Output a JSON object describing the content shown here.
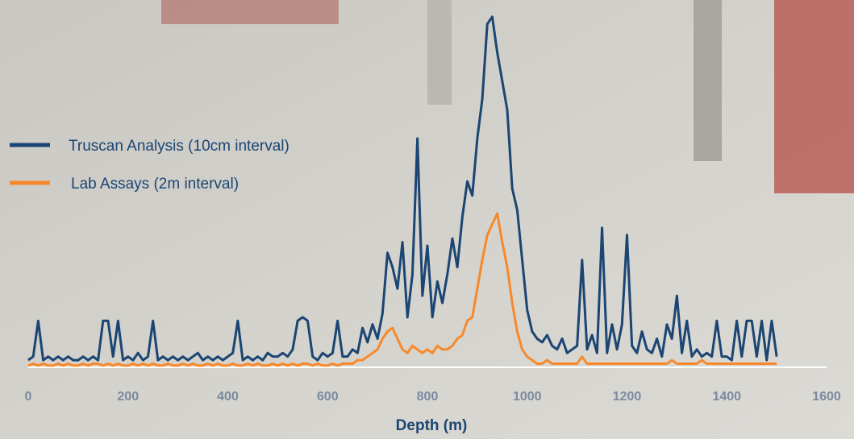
{
  "chart_data": {
    "type": "line",
    "x_label": "Depth (m)",
    "x": [
      0,
      10,
      20,
      30,
      40,
      50,
      60,
      70,
      80,
      90,
      100,
      110,
      120,
      130,
      140,
      150,
      160,
      170,
      180,
      190,
      200,
      210,
      220,
      230,
      240,
      250,
      260,
      270,
      280,
      290,
      300,
      310,
      320,
      330,
      340,
      350,
      360,
      370,
      380,
      390,
      400,
      410,
      420,
      430,
      440,
      450,
      460,
      470,
      480,
      490,
      500,
      510,
      520,
      530,
      540,
      550,
      560,
      570,
      580,
      590,
      600,
      610,
      620,
      630,
      640,
      650,
      660,
      670,
      680,
      690,
      700,
      710,
      720,
      730,
      740,
      750,
      760,
      770,
      780,
      790,
      800,
      810,
      820,
      830,
      840,
      850,
      860,
      870,
      880,
      890,
      900,
      910,
      920,
      930,
      940,
      950,
      960,
      970,
      980,
      990,
      1000,
      1010,
      1020,
      1030,
      1040,
      1050,
      1060,
      1070,
      1080,
      1090,
      1100,
      1110,
      1120,
      1130,
      1140,
      1150,
      1160,
      1170,
      1180,
      1190,
      1200,
      1210,
      1220,
      1230,
      1240,
      1250,
      1260,
      1270,
      1280,
      1290,
      1300,
      1310,
      1320,
      1330,
      1340,
      1350,
      1360,
      1370,
      1380,
      1390,
      1400,
      1410,
      1420,
      1430,
      1440,
      1450,
      1460,
      1470,
      1480,
      1490,
      1500
    ],
    "series": [
      {
        "name": "Truscan Analysis (10cm  interval)",
        "color": "#1b4573",
        "values": [
          2,
          3,
          13,
          2,
          3,
          2,
          3,
          2,
          3,
          2,
          2,
          3,
          2,
          3,
          2,
          13,
          13,
          3,
          13,
          2,
          3,
          2,
          4,
          2,
          3,
          13,
          2,
          3,
          2,
          3,
          2,
          3,
          2,
          3,
          4,
          2,
          3,
          2,
          3,
          2,
          3,
          4,
          13,
          2,
          3,
          2,
          3,
          2,
          4,
          3,
          3,
          4,
          3,
          5,
          13,
          14,
          13,
          3,
          2,
          4,
          3,
          4,
          13,
          3,
          3,
          5,
          4,
          11,
          7,
          12,
          8,
          15,
          32,
          28,
          22,
          35,
          14,
          26,
          64,
          20,
          34,
          14,
          24,
          18,
          26,
          36,
          28,
          42,
          52,
          48,
          64,
          75,
          96,
          98,
          88,
          80,
          72,
          50,
          44,
          30,
          16,
          10,
          8,
          7,
          9,
          6,
          5,
          8,
          4,
          5,
          6,
          30,
          5,
          9,
          4,
          39,
          4,
          12,
          5,
          12,
          37,
          6,
          4,
          10,
          5,
          4,
          8,
          3,
          12,
          8,
          20,
          4,
          13,
          3,
          5,
          3,
          4,
          3,
          13,
          3,
          3,
          2,
          13,
          3,
          13,
          13,
          3,
          13,
          2,
          13,
          3
        ]
      },
      {
        "name": "Lab Assays (2m interval)",
        "color": "#f7892b",
        "values": [
          0.5,
          1,
          0.5,
          1,
          0.5,
          0.5,
          1,
          0.5,
          1,
          0.5,
          0.5,
          1,
          0.5,
          1,
          1,
          0.5,
          1,
          0.5,
          1,
          0.5,
          0.5,
          1,
          0.5,
          1,
          0.5,
          1,
          0.5,
          0.5,
          1,
          0.5,
          0.5,
          1,
          0.5,
          1,
          0.5,
          0.5,
          1,
          0.5,
          1,
          0.5,
          0.5,
          1,
          0.5,
          0.5,
          1,
          0.5,
          1,
          0.5,
          0.5,
          1,
          0.5,
          1,
          0.5,
          1,
          0.5,
          1,
          1,
          0.5,
          1,
          0.5,
          0.5,
          1,
          0.5,
          1,
          1,
          1,
          2,
          2,
          3,
          4,
          5,
          8,
          10,
          11,
          8,
          5,
          4,
          6,
          5,
          4,
          5,
          4,
          6,
          5,
          5,
          6,
          8,
          9,
          13,
          14,
          22,
          30,
          37,
          40,
          43,
          35,
          28,
          18,
          10,
          5,
          3,
          2,
          1,
          1,
          2,
          1,
          1,
          1,
          1,
          1,
          1,
          3,
          1,
          1,
          1,
          1,
          1,
          1,
          1,
          1,
          1,
          1,
          1,
          1,
          1,
          1,
          1,
          1,
          1,
          2,
          1,
          1,
          1,
          1,
          1,
          2,
          1,
          1,
          1,
          1,
          1,
          1,
          1,
          1,
          1,
          1,
          1,
          1,
          1,
          1,
          1
        ]
      }
    ],
    "xlim": [
      0,
      1600
    ],
    "xticks": [
      0,
      200,
      400,
      600,
      800,
      1000,
      1200,
      1400,
      1600
    ],
    "ylim": [
      0,
      100
    ]
  }
}
